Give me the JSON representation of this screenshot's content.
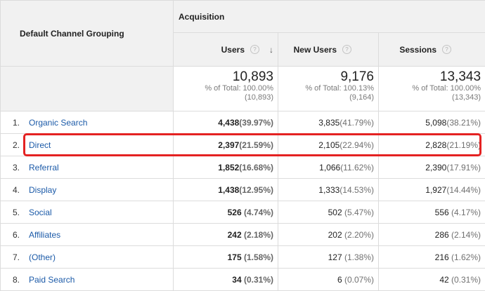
{
  "header": {
    "dimension_label": "Default Channel Grouping",
    "group_label": "Acquisition",
    "metrics": [
      {
        "label": "Users",
        "sorted": true
      },
      {
        "label": "New Users",
        "sorted": false
      },
      {
        "label": "Sessions",
        "sorted": false
      }
    ],
    "help_glyph": "?",
    "sort_glyph": "↓"
  },
  "summary": [
    {
      "value": "10,893",
      "pct_line": "% of Total: 100.00%",
      "total_line": "(10,893)"
    },
    {
      "value": "9,176",
      "pct_line": "% of Total: 100.13%",
      "total_line": "(9,164)"
    },
    {
      "value": "13,343",
      "pct_line": "% of Total: 100.00%",
      "total_line": "(13,343)"
    }
  ],
  "rows": [
    {
      "index": "1.",
      "channel": "Organic Search",
      "users": "4,438",
      "users_pct": "(39.97%)",
      "new_users": "3,835",
      "new_users_pct": "(41.79%)",
      "sessions": "5,098",
      "sessions_pct": "(38.21%)"
    },
    {
      "index": "2.",
      "channel": "Direct",
      "users": "2,397",
      "users_pct": "(21.59%)",
      "new_users": "2,105",
      "new_users_pct": "(22.94%)",
      "sessions": "2,828",
      "sessions_pct": "(21.19%)"
    },
    {
      "index": "3.",
      "channel": "Referral",
      "users": "1,852",
      "users_pct": "(16.68%)",
      "new_users": "1,066",
      "new_users_pct": "(11.62%)",
      "sessions": "2,390",
      "sessions_pct": "(17.91%)"
    },
    {
      "index": "4.",
      "channel": "Display",
      "users": "1,438",
      "users_pct": "(12.95%)",
      "new_users": "1,333",
      "new_users_pct": "(14.53%)",
      "sessions": "1,927",
      "sessions_pct": "(14.44%)"
    },
    {
      "index": "5.",
      "channel": "Social",
      "users": "526",
      "users_pct": " (4.74%)",
      "new_users": "502",
      "new_users_pct": " (5.47%)",
      "sessions": "556",
      "sessions_pct": " (4.17%)"
    },
    {
      "index": "6.",
      "channel": "Affiliates",
      "users": "242",
      "users_pct": " (2.18%)",
      "new_users": "202",
      "new_users_pct": " (2.20%)",
      "sessions": "286",
      "sessions_pct": " (2.14%)"
    },
    {
      "index": "7.",
      "channel": "(Other)",
      "users": "175",
      "users_pct": " (1.58%)",
      "new_users": "127",
      "new_users_pct": " (1.38%)",
      "sessions": "216",
      "sessions_pct": " (1.62%)"
    },
    {
      "index": "8.",
      "channel": "Paid Search",
      "users": "34",
      "users_pct": " (0.31%)",
      "new_users": "6",
      "new_users_pct": " (0.07%)",
      "sessions": "42",
      "sessions_pct": " (0.31%)"
    }
  ],
  "highlight_row": 1,
  "colors": {
    "highlight": "#e42222",
    "link": "#1b5aa8",
    "header_bg": "#f1f1f1"
  }
}
